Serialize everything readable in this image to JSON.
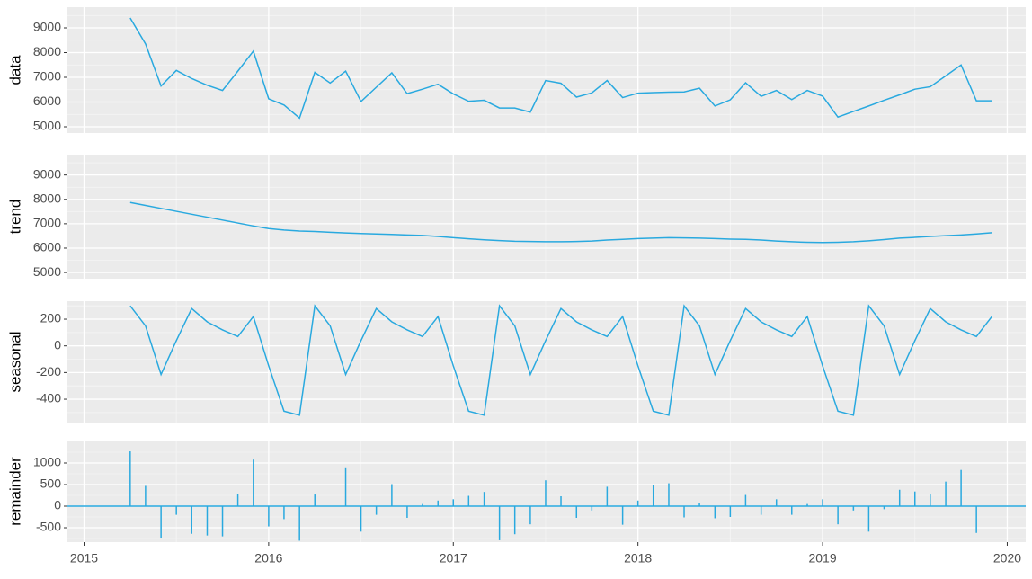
{
  "chart_data": [
    {
      "type": "line",
      "ylabel": "data",
      "color": "#29a9df",
      "grid": true,
      "xlim": [
        2014.91,
        2020.1
      ],
      "ylim": [
        4745,
        9836
      ],
      "xticks": [
        2015,
        2016,
        2017,
        2018,
        2019,
        2020
      ],
      "yticks": [
        5000,
        6000,
        7000,
        8000,
        9000
      ],
      "x": [
        2015.25,
        2015.333,
        2015.417,
        2015.5,
        2015.583,
        2015.667,
        2015.75,
        2015.833,
        2015.917,
        2016,
        2016.083,
        2016.167,
        2016.25,
        2016.333,
        2016.417,
        2016.5,
        2016.583,
        2016.667,
        2016.75,
        2016.833,
        2016.917,
        2017,
        2017.083,
        2017.167,
        2017.25,
        2017.333,
        2017.417,
        2017.5,
        2017.583,
        2017.667,
        2017.75,
        2017.833,
        2017.917,
        2018,
        2018.083,
        2018.167,
        2018.25,
        2018.333,
        2018.417,
        2018.5,
        2018.583,
        2018.667,
        2018.75,
        2018.833,
        2018.917,
        2019,
        2019.083,
        2019.167,
        2019.25,
        2019.333,
        2019.417,
        2019.5,
        2019.583,
        2019.667,
        2019.75,
        2019.833,
        2019.917
      ],
      "values": [
        9400,
        8350,
        6650,
        7280,
        6950,
        6680,
        6470,
        7250,
        8060,
        6130,
        5880,
        5350,
        7200,
        6770,
        7250,
        6020,
        6600,
        7180,
        6340,
        6520,
        6720,
        6330,
        6030,
        6070,
        5760,
        5760,
        5590,
        6870,
        6760,
        6200,
        6370,
        6870,
        6180,
        6360,
        6380,
        6400,
        6410,
        6560,
        5840,
        6090,
        6780,
        6230,
        6470,
        6100,
        6470,
        6240,
        5390,
        5620,
        5840,
        6070,
        6290,
        6520,
        6620,
        7060,
        7500,
        6050,
        6050
      ]
    },
    {
      "type": "line",
      "ylabel": "trend",
      "color": "#29a9df",
      "grid": true,
      "xlim": [
        2014.91,
        2020.1
      ],
      "ylim": [
        4745,
        9836
      ],
      "xticks": [
        2015,
        2016,
        2017,
        2018,
        2019,
        2020
      ],
      "yticks": [
        5000,
        6000,
        7000,
        8000,
        9000
      ],
      "x": [
        2015.25,
        2015.333,
        2015.417,
        2015.5,
        2015.583,
        2015.667,
        2015.75,
        2015.833,
        2015.917,
        2016,
        2016.083,
        2016.167,
        2016.25,
        2016.333,
        2016.417,
        2016.5,
        2016.583,
        2016.667,
        2016.75,
        2016.833,
        2016.917,
        2017,
        2017.083,
        2017.167,
        2017.25,
        2017.333,
        2017.417,
        2017.5,
        2017.583,
        2017.667,
        2017.75,
        2017.833,
        2017.917,
        2018,
        2018.083,
        2018.167,
        2018.25,
        2018.333,
        2018.417,
        2018.5,
        2018.583,
        2018.667,
        2018.75,
        2018.833,
        2018.917,
        2019,
        2019.083,
        2019.167,
        2019.25,
        2019.333,
        2019.417,
        2019.5,
        2019.583,
        2019.667,
        2019.75,
        2019.833,
        2019.917
      ],
      "values": [
        7870,
        7750,
        7630,
        7510,
        7390,
        7270,
        7150,
        7030,
        6910,
        6800,
        6740,
        6700,
        6680,
        6650,
        6620,
        6600,
        6580,
        6560,
        6540,
        6520,
        6480,
        6430,
        6380,
        6340,
        6310,
        6280,
        6270,
        6260,
        6260,
        6270,
        6290,
        6330,
        6360,
        6390,
        6410,
        6430,
        6420,
        6410,
        6390,
        6370,
        6360,
        6330,
        6290,
        6260,
        6240,
        6230,
        6240,
        6260,
        6300,
        6350,
        6410,
        6440,
        6480,
        6510,
        6540,
        6580,
        6630
      ]
    },
    {
      "type": "line",
      "ylabel": "seasonal",
      "color": "#29a9df",
      "grid": true,
      "xlim": [
        2014.91,
        2020.1
      ],
      "ylim": [
        -575,
        335
      ],
      "xticks": [
        2015,
        2016,
        2017,
        2018,
        2019,
        2020
      ],
      "yticks": [
        -400,
        -200,
        0,
        200
      ],
      "x": [
        2015.25,
        2015.333,
        2015.417,
        2015.5,
        2015.583,
        2015.667,
        2015.75,
        2015.833,
        2015.917,
        2016,
        2016.083,
        2016.167,
        2016.25,
        2016.333,
        2016.417,
        2016.5,
        2016.583,
        2016.667,
        2016.75,
        2016.833,
        2016.917,
        2017,
        2017.083,
        2017.167,
        2017.25,
        2017.333,
        2017.417,
        2017.5,
        2017.583,
        2017.667,
        2017.75,
        2017.833,
        2017.917,
        2018,
        2018.083,
        2018.167,
        2018.25,
        2018.333,
        2018.417,
        2018.5,
        2018.583,
        2018.667,
        2018.75,
        2018.833,
        2018.917,
        2019,
        2019.083,
        2019.167,
        2019.25,
        2019.333,
        2019.417,
        2019.5,
        2019.583,
        2019.667,
        2019.75,
        2019.833,
        2019.917
      ],
      "values": [
        300,
        150,
        -215,
        40,
        280,
        180,
        120,
        70,
        220,
        -150,
        -490,
        -520,
        300,
        150,
        -215,
        40,
        280,
        180,
        120,
        70,
        220,
        -150,
        -490,
        -520,
        300,
        150,
        -215,
        40,
        280,
        180,
        120,
        70,
        220,
        -150,
        -490,
        -520,
        300,
        150,
        -215,
        40,
        280,
        180,
        120,
        70,
        220,
        -150,
        -490,
        -520,
        300,
        150,
        -215,
        40,
        280,
        180,
        120,
        70,
        220
      ]
    },
    {
      "type": "bar",
      "ylabel": "remainder",
      "color": "#29a9df",
      "grid": true,
      "xlim": [
        2014.91,
        2020.1
      ],
      "ylim": [
        -833,
        1521
      ],
      "xticks": [
        2015,
        2016,
        2017,
        2018,
        2019,
        2020
      ],
      "yticks": [
        -500,
        0,
        500,
        1000
      ],
      "x": [
        2015.25,
        2015.333,
        2015.417,
        2015.5,
        2015.583,
        2015.667,
        2015.75,
        2015.833,
        2015.917,
        2016,
        2016.083,
        2016.167,
        2016.25,
        2016.333,
        2016.417,
        2016.5,
        2016.583,
        2016.667,
        2016.75,
        2016.833,
        2016.917,
        2017,
        2017.083,
        2017.167,
        2017.25,
        2017.333,
        2017.417,
        2017.5,
        2017.583,
        2017.667,
        2017.75,
        2017.833,
        2017.917,
        2018,
        2018.083,
        2018.167,
        2018.25,
        2018.333,
        2018.417,
        2018.5,
        2018.583,
        2018.667,
        2018.75,
        2018.833,
        2018.917,
        2019,
        2019.083,
        2019.167,
        2019.25,
        2019.333,
        2019.417,
        2019.5,
        2019.583,
        2019.667,
        2019.75,
        2019.833,
        2019.917
      ],
      "values": [
        1270,
        470,
        -730,
        -200,
        -640,
        -680,
        -700,
        280,
        1080,
        -470,
        -300,
        -800,
        270,
        10,
        900,
        -590,
        -200,
        510,
        -270,
        50,
        130,
        160,
        240,
        330,
        -790,
        -650,
        -420,
        600,
        230,
        -270,
        -100,
        450,
        -430,
        130,
        480,
        530,
        -260,
        70,
        -280,
        -250,
        260,
        -200,
        160,
        -200,
        50,
        160,
        -420,
        -100,
        -590,
        -70,
        380,
        340,
        270,
        570,
        840,
        -620,
        0
      ]
    }
  ]
}
